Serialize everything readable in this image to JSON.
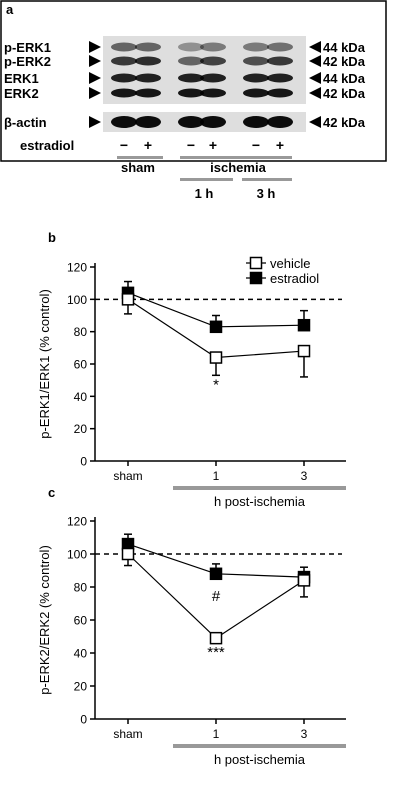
{
  "blot": {
    "panel_label": "a",
    "rows": [
      {
        "left": "p-ERK1",
        "right": "44 kDa"
      },
      {
        "left": "p-ERK2",
        "right": "42 kDa"
      },
      {
        "left": "ERK1",
        "right": "44 kDa"
      },
      {
        "left": "ERK2",
        "right": "42 kDa"
      },
      {
        "left": "β-actin",
        "right": "42 kDa"
      }
    ],
    "treatment_label": "estradiol",
    "lane_signs": [
      "−",
      "+",
      "−",
      "+",
      "−",
      "+"
    ],
    "groups": {
      "sham": "sham",
      "ischemia": "ischemia",
      "h1": "1 h",
      "h3": "3 h"
    }
  },
  "chart_data": [
    {
      "panel_label": "b",
      "type": "line",
      "ylabel": "p-ERK1/ERK1 (% control)",
      "xlabel": "h post-ischemia",
      "categories": [
        "sham",
        "1",
        "3"
      ],
      "ylim": [
        0,
        120
      ],
      "yticks": [
        0,
        20,
        40,
        60,
        80,
        100,
        120
      ],
      "reference_line": 100,
      "legend_position": "top-right",
      "series": [
        {
          "name": "vehicle",
          "marker": "open-square",
          "values": [
            100,
            64,
            68
          ],
          "errors": [
            9,
            11,
            16
          ]
        },
        {
          "name": "estradiol",
          "marker": "filled-square",
          "values": [
            104,
            83,
            84
          ],
          "errors": [
            7,
            7,
            9
          ]
        }
      ],
      "annotations": [
        {
          "text": "*",
          "category": "1"
        }
      ]
    },
    {
      "panel_label": "c",
      "type": "line",
      "ylabel": "p-ERK2/ERK2 (% control)",
      "xlabel": "h post-ischemia",
      "categories": [
        "sham",
        "1",
        "3"
      ],
      "ylim": [
        0,
        120
      ],
      "yticks": [
        0,
        20,
        40,
        60,
        80,
        100,
        120
      ],
      "reference_line": 100,
      "series": [
        {
          "name": "vehicle",
          "marker": "open-square",
          "values": [
            100,
            49,
            84
          ],
          "errors": [
            7,
            3,
            10
          ]
        },
        {
          "name": "estradiol",
          "marker": "filled-square",
          "values": [
            106,
            88,
            86
          ],
          "errors": [
            6,
            6,
            6
          ]
        }
      ],
      "annotations": [
        {
          "text": "#",
          "category": "1"
        },
        {
          "text": "***",
          "category": "1"
        }
      ]
    }
  ]
}
